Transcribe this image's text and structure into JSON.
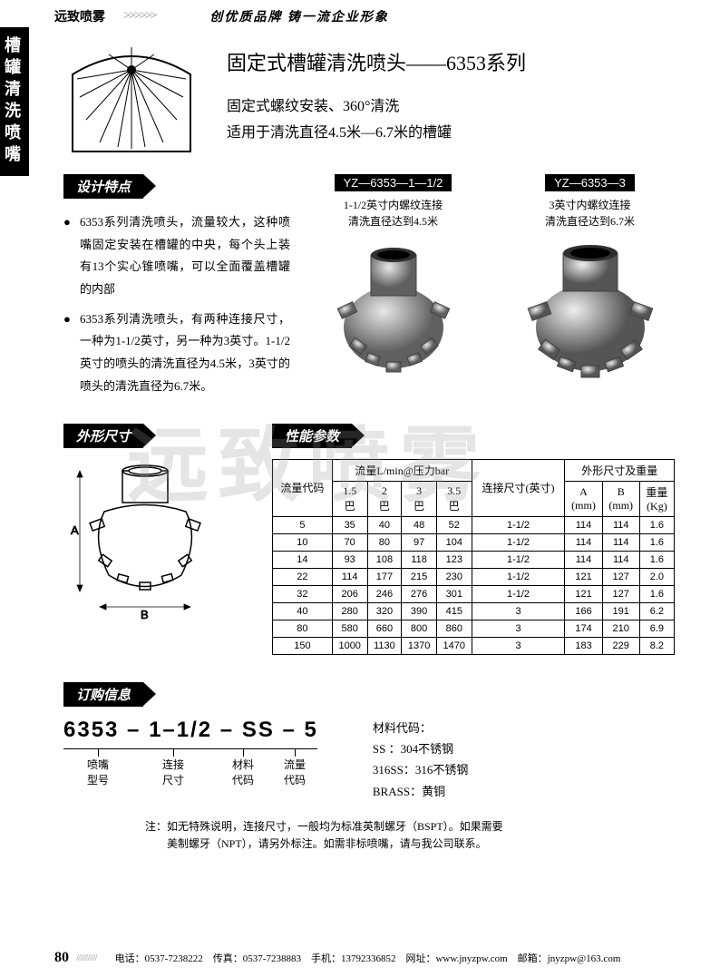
{
  "header": {
    "brand": "远致喷雾",
    "arrows": ">>>>>>",
    "slogan": "创优质品牌  铸一流企业形象"
  },
  "sidetab": "槽罐清洗喷嘴",
  "hero": {
    "title": "固定式槽罐清洗喷头——6353系列",
    "sub1": "固定式螺纹安装、360°清洗",
    "sub2": "适用于清洗直径4.5米—6.7米的槽罐"
  },
  "design": {
    "label": "设计特点",
    "points": [
      "6353系列清洗喷头，流量较大，这种喷嘴固定安装在槽罐的中央，每个头上装有13个实心锥喷嘴，可以全面覆盖槽罐的内部",
      "6353系列清洗喷头，有两种连接尺寸，一种为1-1/2英寸，另一种为3英寸。1-1/2英寸的喷头的清洗直径为4.5米，3英寸的喷头的清洗直径为6.7米。"
    ]
  },
  "products": [
    {
      "label": "YZ—6353—1—1/2",
      "desc1": "1-1/2英寸内螺纹连接",
      "desc2": "清洗直径达到4.5米"
    },
    {
      "label": "YZ—6353—3",
      "desc1": "3英寸内螺纹连接",
      "desc2": "清洗直径达到6.7米"
    }
  ],
  "watermark": "远致喷雾",
  "dim_label": "外形尺寸",
  "spec_label": "性能参数",
  "spec_table": {
    "headers": {
      "code": "流量代码",
      "flow": "流量L/min@压力bar",
      "conn": "连接尺寸(英寸)",
      "dims": "外形尺寸及重量",
      "p15": "1.5\n巴",
      "p2": "2\n巴",
      "p3": "3\n巴",
      "p35": "3.5\n巴",
      "a": "A\n(mm)",
      "b": "B\n(mm)",
      "w": "重量\n(Kg)"
    },
    "rows": [
      [
        "5",
        "35",
        "40",
        "48",
        "52",
        "1-1/2",
        "114",
        "114",
        "1.6"
      ],
      [
        "10",
        "70",
        "80",
        "97",
        "104",
        "1-1/2",
        "114",
        "114",
        "1.6"
      ],
      [
        "14",
        "93",
        "108",
        "118",
        "123",
        "1-1/2",
        "114",
        "114",
        "1.6"
      ],
      [
        "22",
        "114",
        "177",
        "215",
        "230",
        "1-1/2",
        "121",
        "127",
        "2.0"
      ],
      [
        "32",
        "206",
        "246",
        "276",
        "301",
        "1-1/2",
        "121",
        "127",
        "1.6"
      ],
      [
        "40",
        "280",
        "320",
        "390",
        "415",
        "3",
        "166",
        "191",
        "6.2"
      ],
      [
        "80",
        "580",
        "660",
        "800",
        "860",
        "3",
        "174",
        "210",
        "6.9"
      ],
      [
        "150",
        "1000",
        "1130",
        "1370",
        "1470",
        "3",
        "183",
        "229",
        "8.2"
      ]
    ]
  },
  "order": {
    "label": "订购信息",
    "code": "6353 – 1–1/2 – SS – 5",
    "parts": [
      "喷嘴\n型号",
      "连接\n尺寸",
      "材料\n代码",
      "流量\n代码"
    ],
    "mat_label": "材料代码：",
    "mats": [
      "SS   ：304不锈钢",
      "316SS：316不锈钢",
      "BRASS：黄铜"
    ],
    "note1": "注：如无特殊说明，连接尺寸，一般均为标准英制螺牙（BSPT）。如果需要",
    "note2": "　　美制螺牙（NPT），请另外标注。如需非标喷嘴，请与我公司联系。"
  },
  "footer": {
    "page": "80",
    "stripes": "///////////",
    "contact": "电话：0537-7238222　传真：0537-7238883　手机：13792336852　网址：www.jnyzpw.com　邮箱：jnyzpw@163.com"
  },
  "colors": {
    "black": "#000000",
    "gray": "#888888",
    "metal_light": "#d8d8d8",
    "metal_dark": "#707070"
  }
}
